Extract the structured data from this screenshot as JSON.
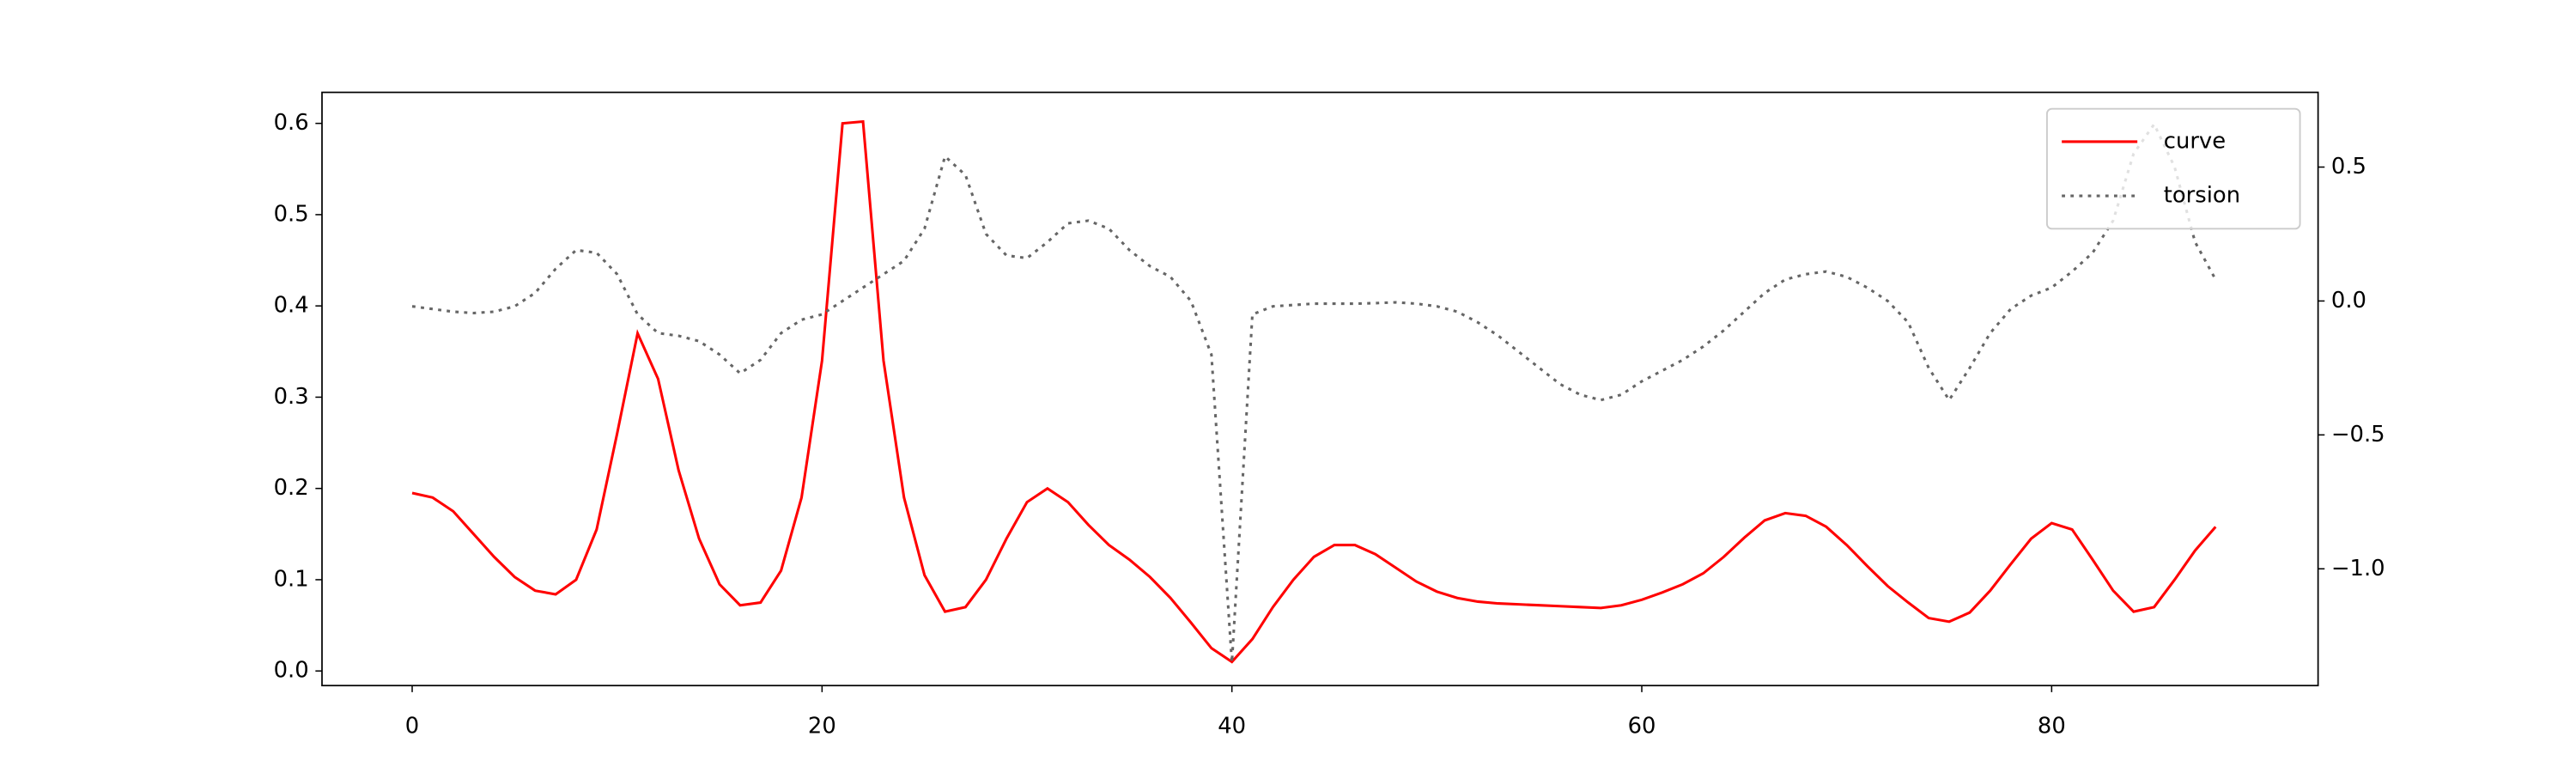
{
  "chart_data": {
    "type": "line",
    "x": [
      0,
      1,
      2,
      3,
      4,
      5,
      6,
      7,
      8,
      9,
      10,
      11,
      12,
      13,
      14,
      15,
      16,
      17,
      18,
      19,
      20,
      21,
      22,
      23,
      24,
      25,
      26,
      27,
      28,
      29,
      30,
      31,
      32,
      33,
      34,
      35,
      36,
      37,
      38,
      39,
      40,
      41,
      42,
      43,
      44,
      45,
      46,
      47,
      48,
      49,
      50,
      51,
      52,
      53,
      54,
      55,
      56,
      57,
      58,
      59,
      60,
      61,
      62,
      63,
      64,
      65,
      66,
      67,
      68,
      69,
      70,
      71,
      72,
      73,
      74,
      75,
      76,
      77,
      78,
      79,
      80,
      81,
      82,
      83,
      84,
      85,
      86,
      87,
      88
    ],
    "series": [
      {
        "name": "curve",
        "color": "#ff0000",
        "dash": "solid",
        "axis": "y",
        "values": [
          0.195,
          0.19,
          0.175,
          0.15,
          0.125,
          0.103,
          0.088,
          0.084,
          0.1,
          0.155,
          0.26,
          0.37,
          0.32,
          0.22,
          0.145,
          0.095,
          0.072,
          0.075,
          0.11,
          0.19,
          0.34,
          0.6,
          0.602,
          0.34,
          0.19,
          0.105,
          0.065,
          0.07,
          0.1,
          0.145,
          0.185,
          0.2,
          0.185,
          0.16,
          0.138,
          0.122,
          0.103,
          0.08,
          0.053,
          0.025,
          0.01,
          0.035,
          0.07,
          0.1,
          0.125,
          0.138,
          0.138,
          0.128,
          0.113,
          0.098,
          0.087,
          0.08,
          0.076,
          0.074,
          0.073,
          0.072,
          0.071,
          0.07,
          0.069,
          0.072,
          0.078,
          0.086,
          0.095,
          0.107,
          0.125,
          0.146,
          0.165,
          0.173,
          0.17,
          0.158,
          0.138,
          0.115,
          0.093,
          0.075,
          0.058,
          0.054,
          0.064,
          0.088,
          0.117,
          0.145,
          0.162,
          0.155,
          0.122,
          0.088,
          0.065,
          0.07,
          0.1,
          0.132,
          0.158
        ]
      },
      {
        "name": "torsion",
        "color": "#666666",
        "dash": "dotted",
        "axis": "y2",
        "values": [
          -0.02,
          -0.03,
          -0.04,
          -0.045,
          -0.04,
          -0.02,
          0.03,
          0.12,
          0.19,
          0.18,
          0.1,
          -0.05,
          -0.12,
          -0.13,
          -0.15,
          -0.2,
          -0.27,
          -0.22,
          -0.12,
          -0.07,
          -0.05,
          0,
          0.05,
          0.1,
          0.15,
          0.27,
          0.54,
          0.47,
          0.25,
          0.17,
          0.16,
          0.22,
          0.29,
          0.3,
          0.27,
          0.19,
          0.13,
          0.09,
          0.0,
          -0.2,
          -1.35,
          -0.05,
          -0.02,
          -0.015,
          -0.01,
          -0.01,
          -0.01,
          -0.008,
          -0.005,
          -0.01,
          -0.02,
          -0.04,
          -0.08,
          -0.13,
          -0.19,
          -0.25,
          -0.31,
          -0.35,
          -0.37,
          -0.35,
          -0.3,
          -0.26,
          -0.22,
          -0.17,
          -0.11,
          -0.04,
          0.03,
          0.08,
          0.1,
          0.11,
          0.09,
          0.05,
          0,
          -0.08,
          -0.25,
          -0.37,
          -0.25,
          -0.12,
          -0.03,
          0.02,
          0.05,
          0.11,
          0.18,
          0.3,
          0.55,
          0.66,
          0.5,
          0.22,
          0.08
        ]
      }
    ],
    "xlim": [
      -4.4,
      93.0
    ],
    "xticks": [
      0,
      20,
      40,
      60,
      80
    ],
    "ylim": [
      -0.016,
      0.634
    ],
    "yticks": [
      {
        "value": 0,
        "label": "0.0"
      },
      0.1,
      0.2,
      0.3,
      0.4,
      0.5,
      0.6
    ],
    "y2lim": [
      -1.436,
      0.779
    ],
    "y2ticks": [
      {
        "value": -1.0,
        "label": "−1.0"
      },
      {
        "value": -0.5,
        "label": "−0.5"
      },
      {
        "value": 0,
        "label": "0.0"
      },
      0.5
    ],
    "legend": "upper right",
    "grid": false
  }
}
